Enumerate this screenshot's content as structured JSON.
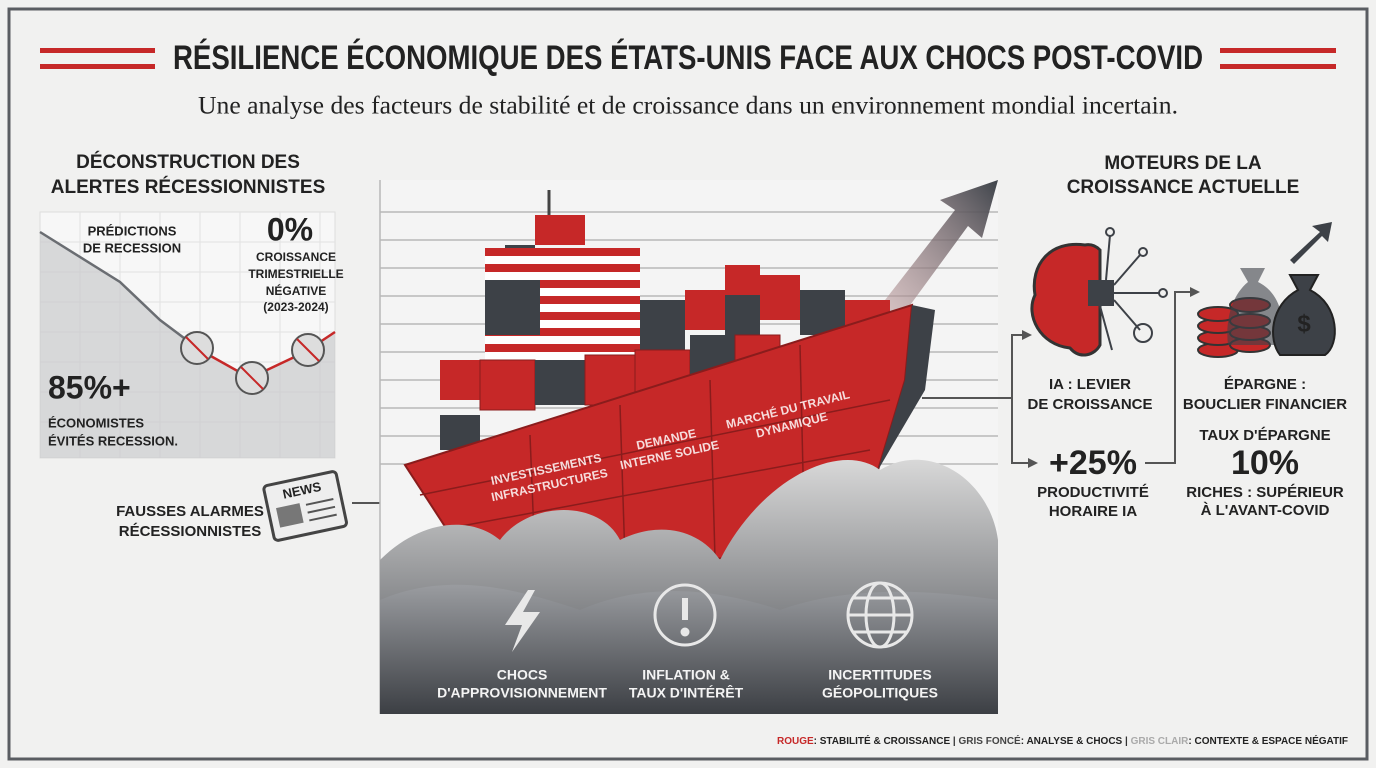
{
  "header": {
    "title": "RÉSILIENCE ÉCONOMIQUE DES ÉTATS-UNIS FACE AUX CHOCS POST-COVID",
    "subtitle": "Une analyse des facteurs de stabilité et de croissance dans un environnement mondial incertain."
  },
  "left_panel": {
    "heading": [
      "DÉCONSTRUCTION DES",
      "ALERTES RÉCESSIONNISTES"
    ],
    "predictions": [
      "PRÉDICTIONS",
      "DE RECESSION"
    ],
    "zero_value": "0%",
    "zero_caption": [
      "CROISSANCE",
      "TRIMESTRIELLE",
      "NÉGATIVE",
      "(2023-2024)"
    ],
    "economists_value": "85%+",
    "economists_caption": [
      "ÉCONOMISTES",
      "ÉVITÉS RECESSION."
    ],
    "false_alarms": [
      "FAUSSES ALARMES",
      "RÉCESSIONNISTES"
    ],
    "news_icon": "NEWS"
  },
  "ship": {
    "labels": [
      [
        "INVESTISSEMENTS",
        "INFRASTRUCTURES"
      ],
      [
        "DEMANDE",
        "INTERNE SOLIDE"
      ],
      [
        "MARCHÉ DU TRAVAIL",
        "DYNAMIQUE"
      ]
    ]
  },
  "shocks": [
    [
      "CHOCS",
      "D'APPROVISIONNEMENT"
    ],
    [
      "INFLATION &",
      "TAUX D'INTÉRÊT"
    ],
    [
      "INCERTITUDES",
      "GÉOPOLITIQUES"
    ]
  ],
  "right_panel": {
    "heading": [
      "MOTEURS DE LA",
      "CROISSANCE ACTUELLE"
    ],
    "ai_label": [
      "IA : LEVIER",
      "DE CROISSANCE"
    ],
    "ai_value": "+25%",
    "ai_caption": [
      "PRODUCTIVITÉ",
      "HORAIRE IA"
    ],
    "savings_label": [
      "ÉPARGNE :",
      "BOUCLIER FINANCIER"
    ],
    "savings_rate_label": "TAUX D'ÉPARGNE",
    "savings_value": "10%",
    "savings_caption": [
      "RICHES : SUPÉRIEUR",
      "À L'AVANT-COVID"
    ]
  },
  "legend": [
    {
      "key": "ROUGE",
      "text": ": STABILITÉ & CROISSANCE"
    },
    {
      "key": "GRIS FONCÉ",
      "text": ": ANALYSE & CHOCS"
    },
    {
      "key": "GRIS CLAIR",
      "text": ": CONTEXTE & ESPACE NÉGATIF"
    }
  ]
}
